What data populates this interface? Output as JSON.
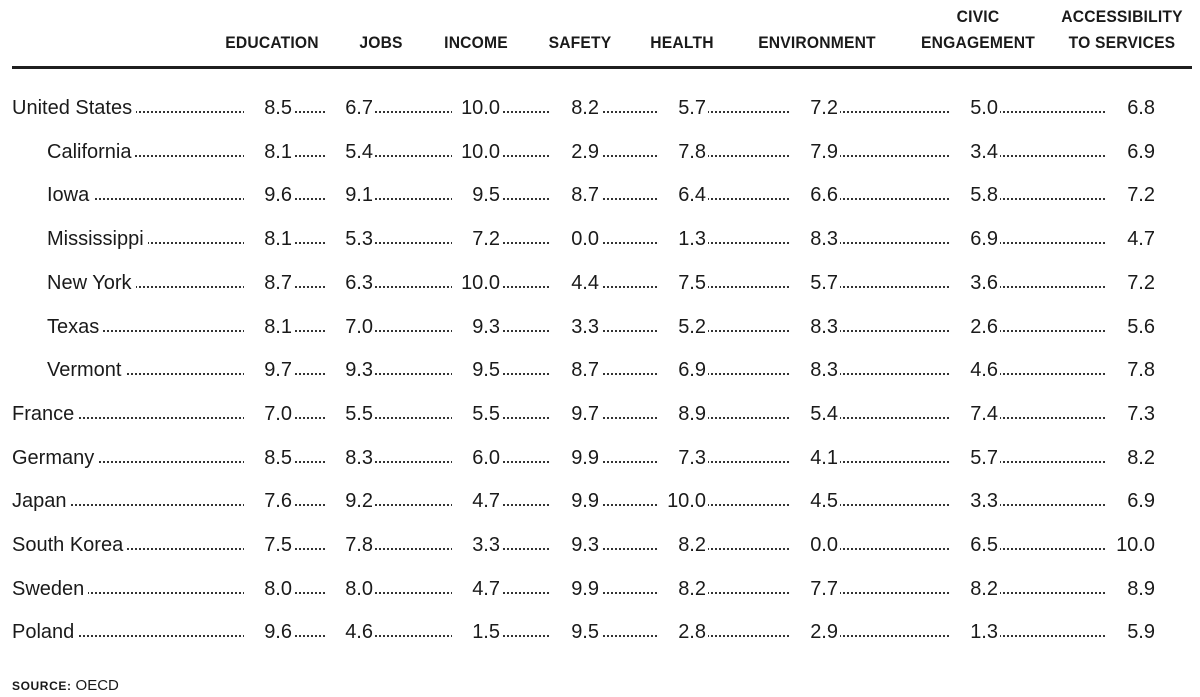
{
  "chart_data": {
    "type": "table",
    "columns": [
      [
        "EDUCATION"
      ],
      [
        "JOBS"
      ],
      [
        "INCOME"
      ],
      [
        "SAFETY"
      ],
      [
        "HEALTH"
      ],
      [
        "ENVIRONMENT"
      ],
      [
        "CIVIC",
        "ENGAGEMENT"
      ],
      [
        "ACCESSIBILITY",
        "TO SERVICES"
      ]
    ],
    "rows": [
      {
        "name": "United States",
        "indent": false,
        "values": [
          "8.5",
          "6.7",
          "10.0",
          "8.2",
          "5.7",
          "7.2",
          "5.0",
          "6.8"
        ]
      },
      {
        "name": "California",
        "indent": true,
        "values": [
          "8.1",
          "5.4",
          "10.0",
          "2.9",
          "7.8",
          "7.9",
          "3.4",
          "6.9"
        ]
      },
      {
        "name": "Iowa",
        "indent": true,
        "values": [
          "9.6",
          "9.1",
          "9.5",
          "8.7",
          "6.4",
          "6.6",
          "5.8",
          "7.2"
        ]
      },
      {
        "name": "Mississippi",
        "indent": true,
        "values": [
          "8.1",
          "5.3",
          "7.2",
          "0.0",
          "1.3",
          "8.3",
          "6.9",
          "4.7"
        ]
      },
      {
        "name": "New York",
        "indent": true,
        "values": [
          "8.7",
          "6.3",
          "10.0",
          "4.4",
          "7.5",
          "5.7",
          "3.6",
          "7.2"
        ]
      },
      {
        "name": "Texas",
        "indent": true,
        "values": [
          "8.1",
          "7.0",
          "9.3",
          "3.3",
          "5.2",
          "8.3",
          "2.6",
          "5.6"
        ]
      },
      {
        "name": "Vermont",
        "indent": true,
        "values": [
          "9.7",
          "9.3",
          "9.5",
          "8.7",
          "6.9",
          "8.3",
          "4.6",
          "7.8"
        ]
      },
      {
        "name": "France",
        "indent": false,
        "values": [
          "7.0",
          "5.5",
          "5.5",
          "9.7",
          "8.9",
          "5.4",
          "7.4",
          "7.3"
        ]
      },
      {
        "name": "Germany",
        "indent": false,
        "values": [
          "8.5",
          "8.3",
          "6.0",
          "9.9",
          "7.3",
          "4.1",
          "5.7",
          "8.2"
        ]
      },
      {
        "name": "Japan",
        "indent": false,
        "values": [
          "7.6",
          "9.2",
          "4.7",
          "9.9",
          "10.0",
          "4.5",
          "3.3",
          "6.9"
        ]
      },
      {
        "name": "South Korea",
        "indent": false,
        "values": [
          "7.5",
          "7.8",
          "3.3",
          "9.3",
          "8.2",
          "0.0",
          "6.5",
          "10.0"
        ]
      },
      {
        "name": "Sweden",
        "indent": false,
        "values": [
          "8.0",
          "8.0",
          "4.7",
          "9.9",
          "8.2",
          "7.7",
          "8.2",
          "8.9"
        ]
      },
      {
        "name": "Poland",
        "indent": false,
        "values": [
          "9.6",
          "4.6",
          "1.5",
          "9.5",
          "2.8",
          "2.9",
          "1.3",
          "5.9"
        ]
      }
    ]
  },
  "source": {
    "label": "SOURCE:",
    "text": "OECD"
  }
}
